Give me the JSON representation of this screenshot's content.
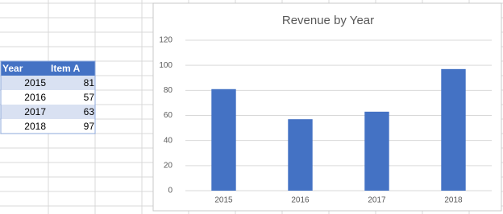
{
  "table": {
    "header": [
      "Year",
      "Item A"
    ],
    "rows": [
      [
        2015,
        81
      ],
      [
        2016,
        57
      ],
      [
        2017,
        63
      ],
      [
        2018,
        97
      ]
    ]
  },
  "chart_data": {
    "type": "bar",
    "title": "Revenue by Year",
    "categories": [
      "2015",
      "2016",
      "2017",
      "2018"
    ],
    "values": [
      81,
      57,
      63,
      97
    ],
    "color": "#4472c4",
    "ylim": [
      0,
      120
    ],
    "yticks": [
      0,
      20,
      40,
      60,
      80,
      100,
      120
    ],
    "grid": true
  }
}
